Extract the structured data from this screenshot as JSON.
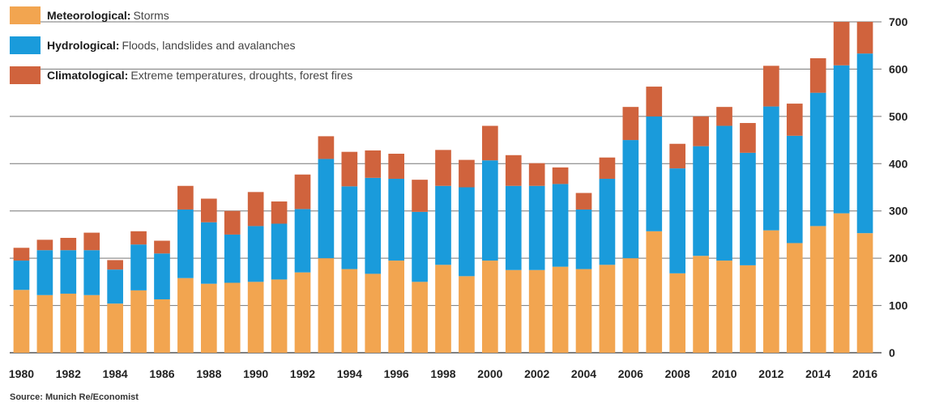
{
  "legend": [
    {
      "name": "Meteorological:",
      "desc": "Storms",
      "color": "#F2A550"
    },
    {
      "name": "Hydrological:",
      "desc": "Floods, landslides and avalanches",
      "color": "#1A9BDB"
    },
    {
      "name": "Climatological:",
      "desc": "Extreme temperatures, droughts, forest fires",
      "color": "#D0633D"
    }
  ],
  "source": "Source: Munich Re/Economist",
  "chart_data": {
    "type": "bar",
    "stacked": true,
    "categories": [
      "1980",
      "1981",
      "1982",
      "1983",
      "1984",
      "1985",
      "1986",
      "1987",
      "1988",
      "1989",
      "1990",
      "1991",
      "1992",
      "1993",
      "1994",
      "1995",
      "1996",
      "1997",
      "1998",
      "1999",
      "2000",
      "2001",
      "2002",
      "2003",
      "2004",
      "2005",
      "2006",
      "2007",
      "2008",
      "2009",
      "2010",
      "2011",
      "2012",
      "2013",
      "2014",
      "2015",
      "2016"
    ],
    "x_tick_labels": [
      "1980",
      "1982",
      "1984",
      "1986",
      "1988",
      "1990",
      "1992",
      "1994",
      "1996",
      "1998",
      "2000",
      "2002",
      "2004",
      "2006",
      "2008",
      "2010",
      "2012",
      "2014",
      "2016"
    ],
    "series": [
      {
        "name": "Meteorological",
        "color": "#F2A550",
        "values": [
          133,
          122,
          125,
          122,
          104,
          132,
          113,
          158,
          146,
          148,
          150,
          155,
          170,
          200,
          177,
          167,
          195,
          150,
          186,
          162,
          195,
          175,
          175,
          182,
          177,
          186,
          200,
          257,
          168,
          205,
          195,
          185,
          259,
          232,
          268,
          295,
          253
        ]
      },
      {
        "name": "Hydrological",
        "color": "#1A9BDB",
        "values": [
          62,
          95,
          92,
          95,
          72,
          97,
          97,
          145,
          130,
          102,
          118,
          118,
          134,
          210,
          175,
          203,
          173,
          148,
          167,
          188,
          212,
          178,
          178,
          175,
          126,
          182,
          250,
          243,
          222,
          232,
          285,
          238,
          262,
          227,
          282,
          313,
          380
        ]
      },
      {
        "name": "Climatological",
        "color": "#D0633D",
        "values": [
          27,
          22,
          26,
          37,
          20,
          28,
          27,
          50,
          50,
          50,
          72,
          47,
          73,
          48,
          73,
          58,
          53,
          68,
          76,
          58,
          73,
          65,
          48,
          35,
          35,
          45,
          70,
          63,
          52,
          63,
          40,
          63,
          86,
          68,
          73,
          92,
          67
        ]
      }
    ],
    "y_ticks": [
      0,
      100,
      200,
      300,
      400,
      500,
      600,
      700
    ],
    "ylim": [
      0,
      700
    ],
    "grid": true,
    "y_axis_side": "right",
    "legend_position": "top-left"
  }
}
